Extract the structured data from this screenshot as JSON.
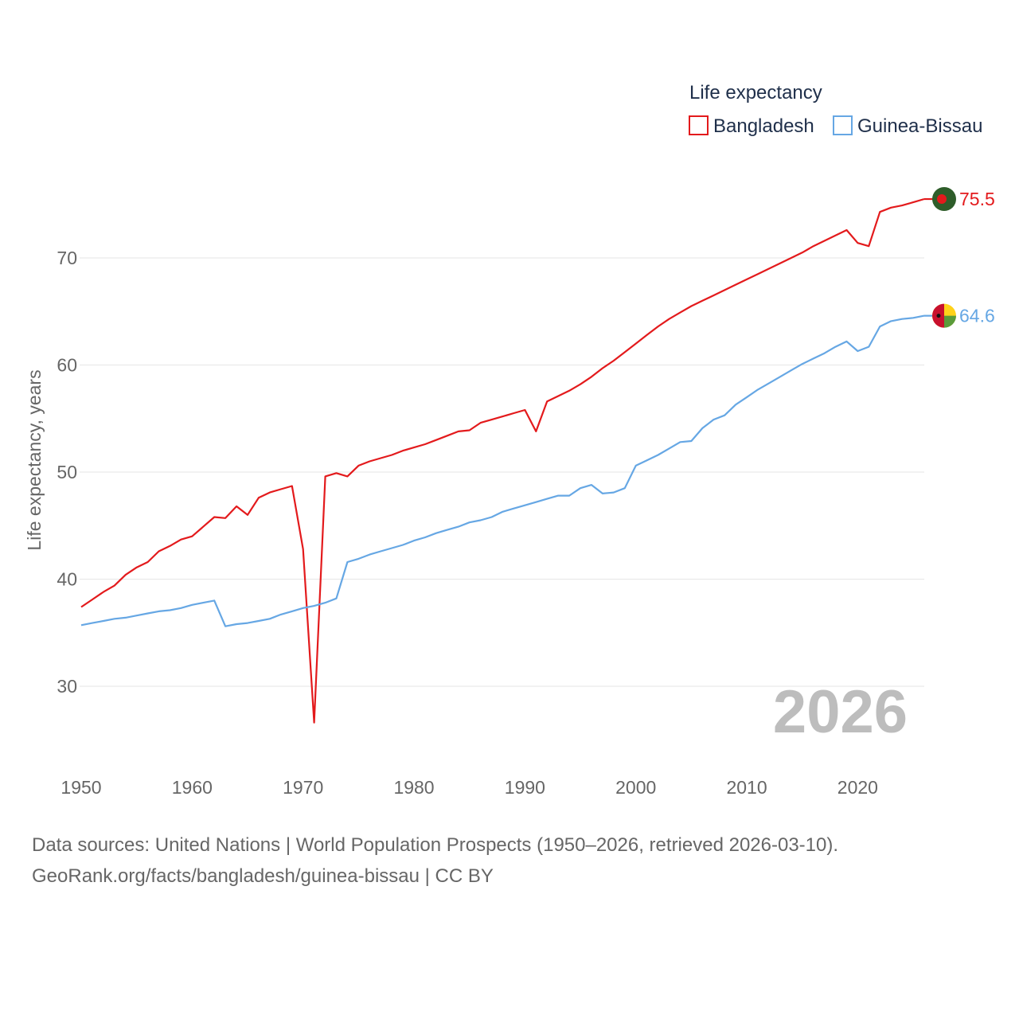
{
  "chart_data": {
    "type": "line",
    "legend_title": "Life expectancy",
    "ylabel": "Life expectancy, years",
    "xlabel": "",
    "year_label": "2026",
    "xlim": [
      1950,
      2026
    ],
    "ylim": [
      22,
      80
    ],
    "x_ticks": [
      1950,
      1960,
      1970,
      1980,
      1990,
      2000,
      2010,
      2020
    ],
    "y_ticks": [
      30,
      40,
      50,
      60,
      70
    ],
    "x": [
      1950,
      1951,
      1952,
      1953,
      1954,
      1955,
      1956,
      1957,
      1958,
      1959,
      1960,
      1961,
      1962,
      1963,
      1964,
      1965,
      1966,
      1967,
      1968,
      1969,
      1970,
      1971,
      1972,
      1973,
      1974,
      1975,
      1976,
      1977,
      1978,
      1979,
      1980,
      1981,
      1982,
      1983,
      1984,
      1985,
      1986,
      1987,
      1988,
      1989,
      1990,
      1991,
      1992,
      1993,
      1994,
      1995,
      1996,
      1997,
      1998,
      1999,
      2000,
      2001,
      2002,
      2003,
      2004,
      2005,
      2006,
      2007,
      2008,
      2009,
      2010,
      2011,
      2012,
      2013,
      2014,
      2015,
      2016,
      2017,
      2018,
      2019,
      2020,
      2021,
      2022,
      2023,
      2024,
      2025,
      2026
    ],
    "series": [
      {
        "name": "Bangladesh",
        "color": "#e31a1c",
        "end_label": "75.5",
        "flag_icon": "bangladesh-flag-icon",
        "values": [
          37.4,
          38.1,
          38.8,
          39.4,
          40.4,
          41.1,
          41.6,
          42.6,
          43.1,
          43.7,
          44.0,
          44.9,
          45.8,
          45.7,
          46.8,
          46.0,
          47.6,
          48.1,
          48.4,
          48.7,
          42.8,
          26.6,
          49.6,
          49.9,
          49.6,
          50.6,
          51.0,
          51.3,
          51.6,
          52.0,
          52.3,
          52.6,
          53.0,
          53.4,
          53.8,
          53.9,
          54.6,
          54.9,
          55.2,
          55.5,
          55.8,
          53.8,
          56.6,
          57.1,
          57.6,
          58.2,
          58.9,
          59.7,
          60.4,
          61.2,
          62.0,
          62.8,
          63.6,
          64.3,
          64.9,
          65.5,
          66.0,
          66.5,
          67.0,
          67.5,
          68.0,
          68.5,
          69.0,
          69.5,
          70.0,
          70.5,
          71.1,
          71.6,
          72.1,
          72.6,
          71.4,
          71.1,
          74.3,
          74.7,
          74.9,
          75.2,
          75.5
        ]
      },
      {
        "name": "Guinea-Bissau",
        "color": "#66a7e4",
        "end_label": "64.6",
        "flag_icon": "guinea-bissau-flag-icon",
        "values": [
          35.7,
          35.9,
          36.1,
          36.3,
          36.4,
          36.6,
          36.8,
          37.0,
          37.1,
          37.3,
          37.6,
          37.8,
          38.0,
          35.6,
          35.8,
          35.9,
          36.1,
          36.3,
          36.7,
          37.0,
          37.3,
          37.5,
          37.8,
          38.2,
          41.6,
          41.9,
          42.3,
          42.6,
          42.9,
          43.2,
          43.6,
          43.9,
          44.3,
          44.6,
          44.9,
          45.3,
          45.5,
          45.8,
          46.3,
          46.6,
          46.9,
          47.2,
          47.5,
          47.8,
          47.8,
          48.5,
          48.8,
          48.0,
          48.1,
          48.5,
          50.6,
          51.1,
          51.6,
          52.2,
          52.8,
          52.9,
          54.1,
          54.9,
          55.3,
          56.3,
          57.0,
          57.7,
          58.3,
          58.9,
          59.5,
          60.1,
          60.6,
          61.1,
          61.7,
          62.2,
          61.3,
          61.7,
          63.6,
          64.1,
          64.3,
          64.4,
          64.6
        ]
      }
    ]
  },
  "footer": {
    "line1": "Data sources: United Nations | World Population Prospects (1950–2026, retrieved 2026-03-10).",
    "line2": "GeoRank.org/facts/bangladesh/guinea-bissau | CC BY"
  }
}
